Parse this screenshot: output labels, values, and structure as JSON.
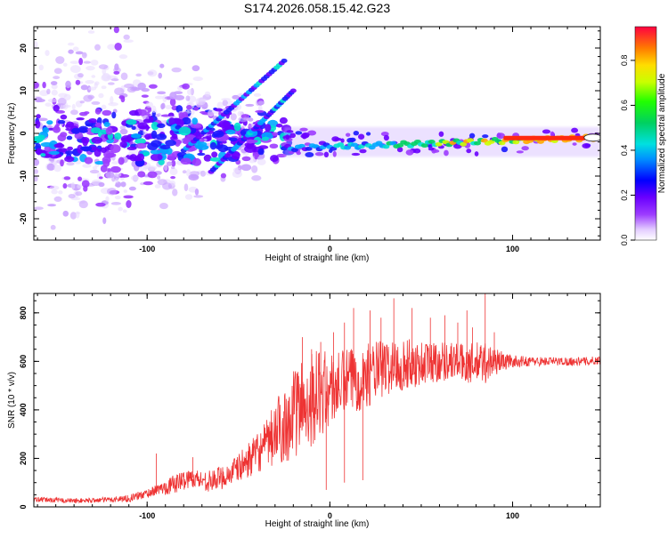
{
  "title": "S174.2026.058.15.42.G23",
  "colors": {
    "snr_line": "#ee3333",
    "axis": "#000000"
  },
  "chart_data": [
    {
      "type": "heatmap",
      "name": "spectrogram",
      "xlabel": "Height of straight line (km)",
      "ylabel": "Frequency (Hz)",
      "xlim": [
        -162,
        148
      ],
      "ylim": [
        -25,
        25
      ],
      "x_ticks": [
        -100,
        0,
        100
      ],
      "y_ticks": [
        -20,
        -10,
        0,
        10,
        20
      ],
      "x_tick_labels": [
        "-100",
        "0",
        "100"
      ],
      "y_tick_labels": [
        "-20",
        "-10",
        "0",
        "10",
        "20"
      ],
      "colorbar": {
        "label": "Normalized spectral amplitude",
        "range": [
          0,
          0.95
        ],
        "ticks": [
          0,
          0.2,
          0.4,
          0.6,
          0.8
        ],
        "tick_labels": [
          "0.0",
          "0.2",
          "0.4",
          "0.6",
          "0.8"
        ]
      },
      "features": [
        {
          "name": "carrier-trace",
          "x_start": -25,
          "x_end": 148,
          "freq_start": -3.5,
          "freq_end": -1,
          "amplitude": "0.3-0.95"
        },
        {
          "name": "diagonal-trace-1",
          "x_start": -80,
          "x_end": -25,
          "freq_start": -4,
          "freq_end": 17
        },
        {
          "name": "diagonal-trace-2",
          "x_start": -65,
          "x_end": -20,
          "freq_start": -9,
          "freq_end": 10
        },
        {
          "name": "scatter-region",
          "x_start": -162,
          "x_end": -40,
          "freq_range": [
            -25,
            25
          ]
        }
      ]
    },
    {
      "type": "line",
      "name": "snr",
      "xlabel": "Height of straight line (km)",
      "ylabel": "SNR (10 * v/v)",
      "xlim": [
        -162,
        148
      ],
      "ylim": [
        0,
        880
      ],
      "x_ticks": [
        -100,
        0,
        100
      ],
      "y_ticks": [
        0,
        200,
        400,
        600,
        800
      ],
      "x_tick_labels": [
        "-100",
        "0",
        "100"
      ],
      "y_tick_labels": [
        "0",
        "200",
        "400",
        "600",
        "800"
      ],
      "series": [
        {
          "name": "SNR",
          "x": [
            -162,
            -150,
            -140,
            -130,
            -120,
            -110,
            -100,
            -95,
            -90,
            -85,
            -80,
            -75,
            -70,
            -65,
            -60,
            -55,
            -50,
            -45,
            -40,
            -35,
            -30,
            -25,
            -20,
            -15,
            -10,
            -5,
            0,
            5,
            10,
            15,
            20,
            25,
            30,
            35,
            40,
            45,
            50,
            55,
            60,
            65,
            70,
            75,
            80,
            85,
            90,
            95,
            100,
            110,
            120,
            130,
            140,
            148
          ],
          "values": [
            30,
            28,
            25,
            27,
            30,
            35,
            55,
            70,
            80,
            95,
            110,
            120,
            110,
            105,
            120,
            135,
            160,
            190,
            220,
            250,
            300,
            340,
            380,
            420,
            450,
            470,
            480,
            500,
            520,
            530,
            540,
            560,
            570,
            580,
            585,
            590,
            590,
            600,
            600,
            605,
            600,
            590,
            590,
            595,
            600,
            600,
            600,
            600,
            600,
            600,
            600,
            605
          ],
          "noise": [
            10,
            10,
            10,
            10,
            12,
            15,
            20,
            20,
            30,
            40,
            40,
            40,
            40,
            45,
            50,
            50,
            60,
            70,
            80,
            100,
            140,
            160,
            180,
            200,
            200,
            180,
            160,
            140,
            140,
            140,
            130,
            130,
            120,
            110,
            110,
            100,
            100,
            90,
            90,
            80,
            80,
            80,
            90,
            90,
            60,
            40,
            25,
            20,
            18,
            18,
            18,
            18
          ]
        }
      ],
      "spikes": [
        {
          "x": -95,
          "y": 220
        },
        {
          "x": -75,
          "y": 205
        },
        {
          "x": -20,
          "y": 480
        },
        {
          "x": -18,
          "y": 550
        },
        {
          "x": -15,
          "y": 700
        },
        {
          "x": -10,
          "y": 650
        },
        {
          "x": -5,
          "y": 680
        },
        {
          "x": 2,
          "y": 720
        },
        {
          "x": 8,
          "y": 760
        },
        {
          "x": 13,
          "y": 820
        },
        {
          "x": 22,
          "y": 810
        },
        {
          "x": 28,
          "y": 780
        },
        {
          "x": 35,
          "y": 860
        },
        {
          "x": 45,
          "y": 820
        },
        {
          "x": 55,
          "y": 780
        },
        {
          "x": 63,
          "y": 790
        },
        {
          "x": 70,
          "y": 760
        },
        {
          "x": 75,
          "y": 810
        },
        {
          "x": 78,
          "y": 740
        },
        {
          "x": 85,
          "y": 880
        },
        {
          "x": 90,
          "y": 720
        },
        {
          "x": -2,
          "y": 70
        },
        {
          "x": 8,
          "y": 100
        },
        {
          "x": 18,
          "y": 110
        }
      ]
    }
  ]
}
